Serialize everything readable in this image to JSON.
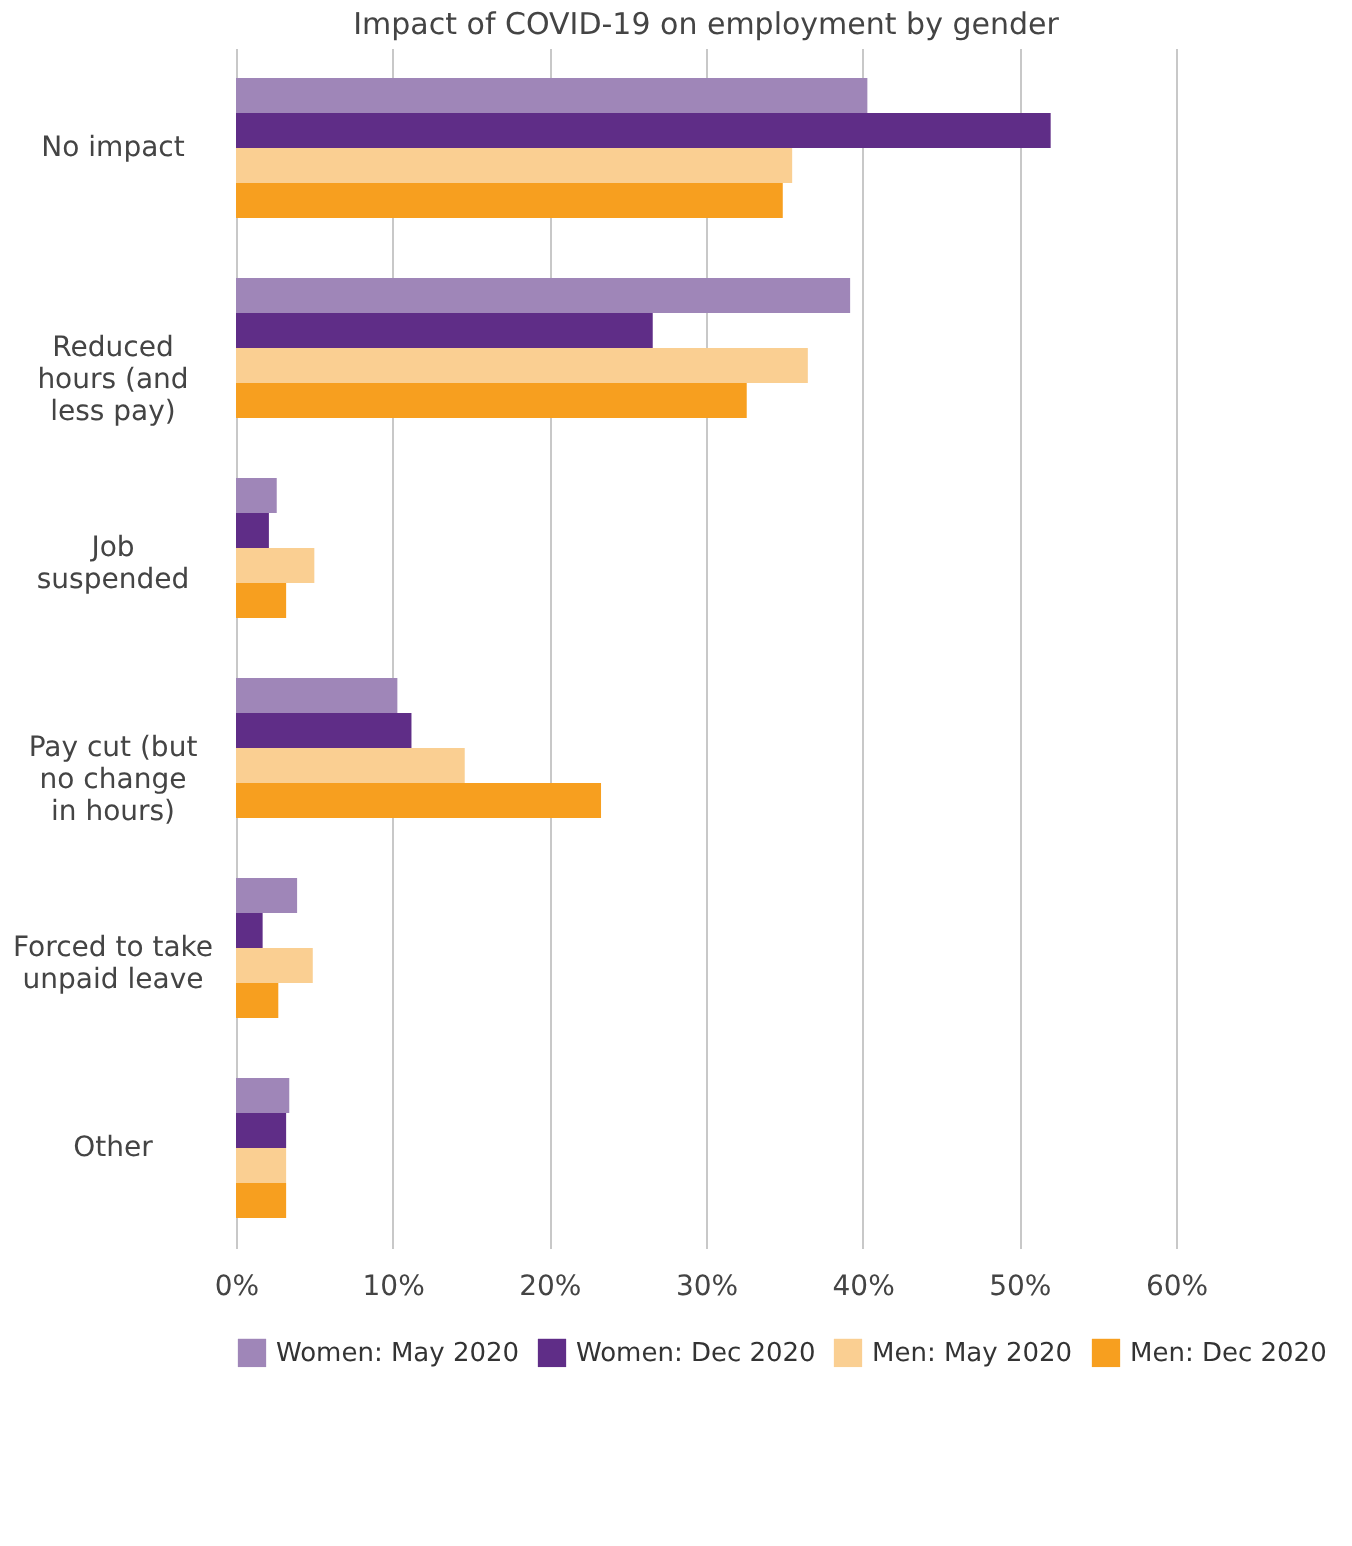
{
  "chart_data": {
    "type": "bar",
    "orientation": "horizontal",
    "title": "Impact of COVID-19 on employment by gender",
    "categories": [
      "No impact",
      "Reduced\nhours (and\nless pay)",
      "Job\nsuspended",
      "Pay cut (but\nno change\nin hours)",
      "Forced to take\nunpaid leave",
      "Other"
    ],
    "series": [
      {
        "name": "Women: May 2020",
        "color": "#9f86b8",
        "values": [
          40.3,
          39.2,
          2.6,
          10.3,
          3.9,
          3.4
        ]
      },
      {
        "name": "Women: Dec 2020",
        "color": "#5f2d87",
        "values": [
          52.0,
          26.6,
          2.1,
          11.2,
          1.7,
          3.2
        ]
      },
      {
        "name": "Men: May 2020",
        "color": "#facf92",
        "values": [
          35.5,
          36.5,
          5.0,
          14.6,
          4.9,
          3.2
        ]
      },
      {
        "name": "Men: Dec 2020",
        "color": "#f79f1f",
        "values": [
          34.9,
          32.6,
          3.2,
          23.3,
          2.7,
          3.2
        ]
      }
    ],
    "xlim": [
      0,
      60
    ],
    "xticks": [
      {
        "value": 0,
        "label": "0%"
      },
      {
        "value": 10,
        "label": "10%"
      },
      {
        "value": 20,
        "label": "20%"
      },
      {
        "value": 30,
        "label": "30%"
      },
      {
        "value": 40,
        "label": "40%"
      },
      {
        "value": 50,
        "label": "50%"
      },
      {
        "value": 60,
        "label": "60%"
      }
    ],
    "grid": "x",
    "legend": "bottom"
  }
}
